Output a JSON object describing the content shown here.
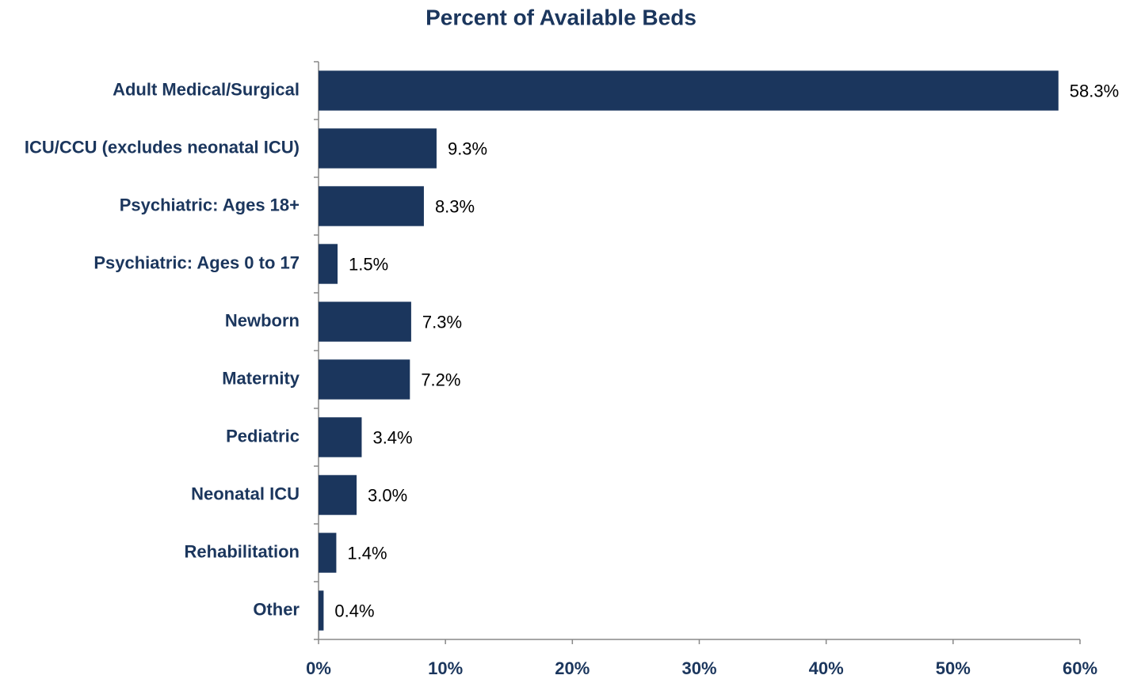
{
  "chart_data": {
    "type": "bar",
    "orientation": "horizontal",
    "title": "Percent of Available Beds",
    "categories": [
      "Adult Medical/Surgical",
      "ICU/CCU (excludes neonatal ICU)",
      "Psychiatric: Ages 18+",
      "Psychiatric: Ages 0 to 17",
      "Newborn",
      "Maternity",
      "Pediatric",
      "Neonatal ICU",
      "Rehabilitation",
      "Other"
    ],
    "values": [
      58.3,
      9.3,
      8.3,
      1.5,
      7.3,
      7.2,
      3.4,
      3.0,
      1.4,
      0.4
    ],
    "value_labels": [
      "58.3%",
      "9.3%",
      "8.3%",
      "1.5%",
      "7.3%",
      "7.2%",
      "3.4%",
      "3.0%",
      "1.4%",
      "0.4%"
    ],
    "color": "#1b365d",
    "xlim": [
      0,
      60
    ],
    "xticks": [
      {
        "value": 0,
        "label": "0%"
      },
      {
        "value": 10,
        "label": "10%"
      },
      {
        "value": 20,
        "label": "20%"
      },
      {
        "value": 30,
        "label": "30%"
      },
      {
        "value": 40,
        "label": "40%"
      },
      {
        "value": 50,
        "label": "50%"
      },
      {
        "value": 60,
        "label": "60%"
      }
    ],
    "grid": false
  }
}
